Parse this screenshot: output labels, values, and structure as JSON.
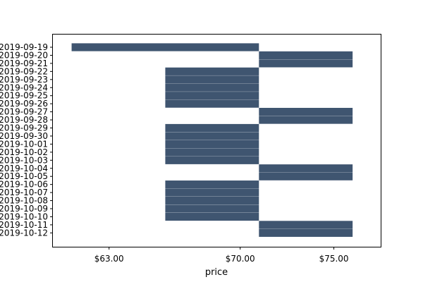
{
  "chart_data": {
    "type": "bar",
    "orientation": "horizontal",
    "title": "",
    "xlabel": "price",
    "ylabel": "",
    "x_ticks": [
      {
        "value": 63,
        "label": "$63.00"
      },
      {
        "value": 70,
        "label": "$70.00"
      },
      {
        "value": 75,
        "label": "$75.00"
      }
    ],
    "xlim": [
      60,
      77.5
    ],
    "bar_color": "#3f5570",
    "grid": false,
    "legend": "none",
    "bars": [
      {
        "label": "2019-09-19",
        "start": 61.0,
        "end": 71.0
      },
      {
        "label": "2019-09-20",
        "start": 71.0,
        "end": 76.0
      },
      {
        "label": "2019-09-21",
        "start": 71.0,
        "end": 76.0
      },
      {
        "label": "2019-09-22",
        "start": 66.0,
        "end": 71.0
      },
      {
        "label": "2019-09-23",
        "start": 66.0,
        "end": 71.0
      },
      {
        "label": "2019-09-24",
        "start": 66.0,
        "end": 71.0
      },
      {
        "label": "2019-09-25",
        "start": 66.0,
        "end": 71.0
      },
      {
        "label": "2019-09-26",
        "start": 66.0,
        "end": 71.0
      },
      {
        "label": "2019-09-27",
        "start": 71.0,
        "end": 76.0
      },
      {
        "label": "2019-09-28",
        "start": 71.0,
        "end": 76.0
      },
      {
        "label": "2019-09-29",
        "start": 66.0,
        "end": 71.0
      },
      {
        "label": "2019-09-30",
        "start": 66.0,
        "end": 71.0
      },
      {
        "label": "2019-10-01",
        "start": 66.0,
        "end": 71.0
      },
      {
        "label": "2019-10-02",
        "start": 66.0,
        "end": 71.0
      },
      {
        "label": "2019-10-03",
        "start": 66.0,
        "end": 71.0
      },
      {
        "label": "2019-10-04",
        "start": 71.0,
        "end": 76.0
      },
      {
        "label": "2019-10-05",
        "start": 71.0,
        "end": 76.0
      },
      {
        "label": "2019-10-06",
        "start": 66.0,
        "end": 71.0
      },
      {
        "label": "2019-10-07",
        "start": 66.0,
        "end": 71.0
      },
      {
        "label": "2019-10-08",
        "start": 66.0,
        "end": 71.0
      },
      {
        "label": "2019-10-09",
        "start": 66.0,
        "end": 71.0
      },
      {
        "label": "2019-10-10",
        "start": 66.0,
        "end": 71.0
      },
      {
        "label": "2019-10-11",
        "start": 71.0,
        "end": 76.0
      },
      {
        "label": "2019-10-12",
        "start": 71.0,
        "end": 76.0
      }
    ]
  }
}
